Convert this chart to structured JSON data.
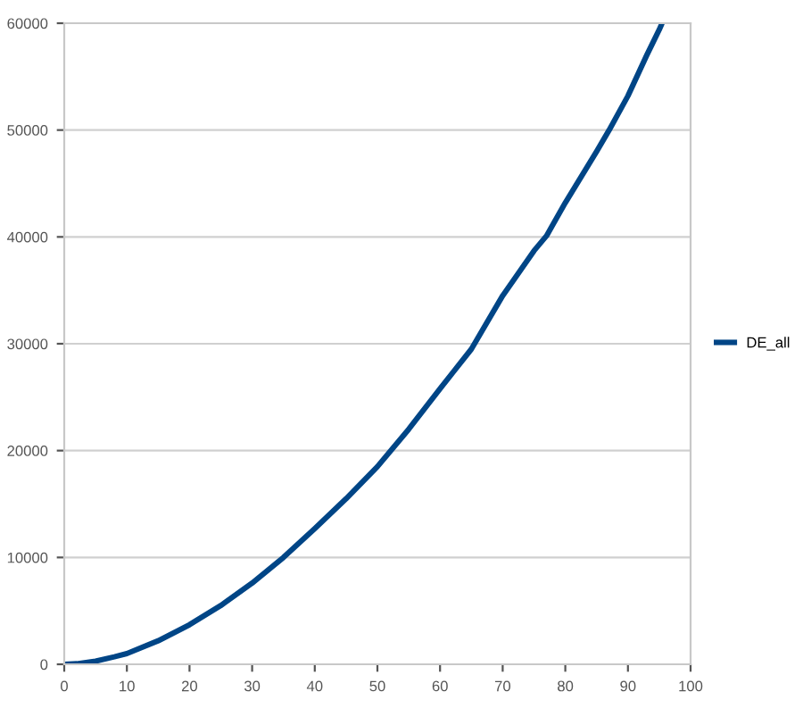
{
  "chart_data": {
    "type": "line",
    "xlim": [
      0,
      100
    ],
    "ylim": [
      0,
      60000
    ],
    "xticks": [
      0,
      10,
      20,
      30,
      40,
      50,
      60,
      70,
      80,
      90,
      100
    ],
    "yticks": [
      0,
      10000,
      20000,
      30000,
      40000,
      50000,
      60000
    ],
    "grid": "y",
    "legend": "right",
    "marker": "none",
    "line_style": "solid",
    "series": [
      {
        "name": "DE_all",
        "color": "#004586",
        "x": [
          0,
          2,
          5,
          8,
          10,
          15,
          20,
          25,
          30,
          35,
          40,
          45,
          50,
          55,
          60,
          65,
          70,
          75,
          77,
          80,
          85,
          87,
          90,
          93,
          95,
          95.3
        ],
        "values": [
          0,
          50,
          300,
          700,
          1000,
          2200,
          3700,
          5500,
          7600,
          10000,
          12700,
          15500,
          18500,
          22000,
          25800,
          29500,
          34500,
          38700,
          40100,
          43200,
          48000,
          50000,
          53200,
          57000,
          59400,
          59800
        ]
      }
    ]
  }
}
